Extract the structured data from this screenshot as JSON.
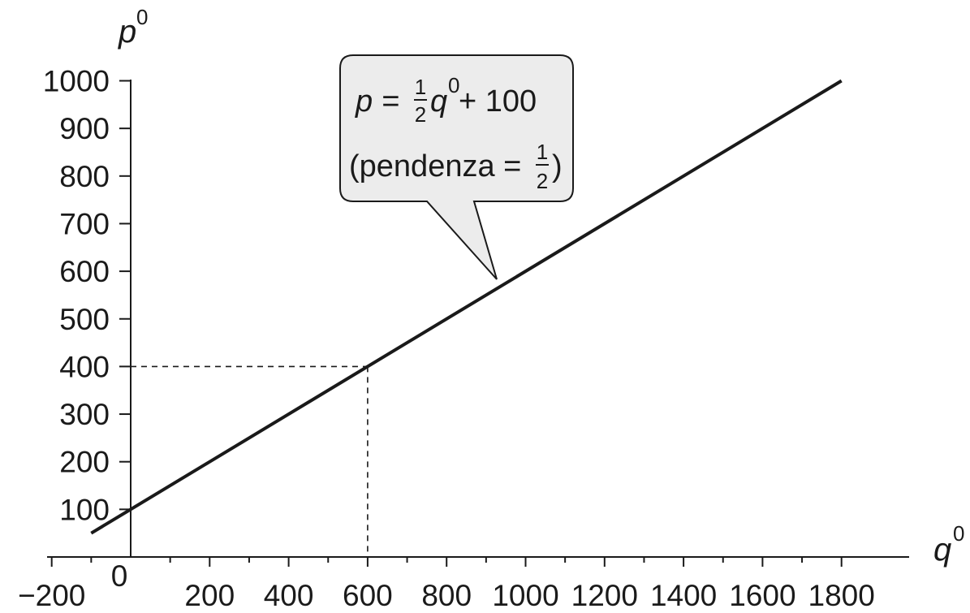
{
  "chart_data": {
    "type": "line",
    "xlabel": "q",
    "xlabel_sup": "0",
    "ylabel": "p",
    "ylabel_sup": "0",
    "xlim": [
      -220,
      1980
    ],
    "ylim": [
      0,
      1020
    ],
    "x_ticks": [
      -200,
      0,
      200,
      400,
      600,
      800,
      1000,
      1200,
      1400,
      1600,
      1800
    ],
    "x_tick_labels": [
      "−200",
      "0",
      "200",
      "400",
      "600",
      "800",
      "1000",
      "1200",
      "1400",
      "1600",
      "1800"
    ],
    "x_minor_step": 100,
    "y_ticks": [
      100,
      200,
      300,
      400,
      500,
      600,
      700,
      800,
      900,
      1000
    ],
    "y_tick_labels": [
      "100",
      "200",
      "300",
      "400",
      "500",
      "600",
      "700",
      "800",
      "900",
      "1000"
    ],
    "grid": false,
    "series": [
      {
        "x": [
          -100,
          1800
        ],
        "y": [
          50,
          1000
        ],
        "color": "#1a1a1a"
      }
    ],
    "guide": {
      "x": 600,
      "y": 400
    },
    "callout": {
      "anchor_x": 900,
      "line1_prefix": "p = ",
      "line1_frac_num": "1",
      "line1_frac_den": "2",
      "line1_var": "q",
      "line1_sup": "0",
      "line1_suffix": " + 100",
      "line2_prefix": "(pendenza = ",
      "line2_frac_num": "1",
      "line2_frac_den": "2",
      "line2_suffix": ")"
    }
  }
}
